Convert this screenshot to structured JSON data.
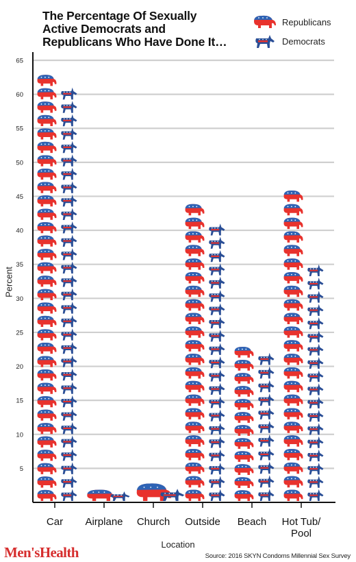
{
  "chart_data": {
    "type": "bar",
    "title": "The Percentage Of Sexually\nActive Democrats and\nRepublicans Who Have Done It…",
    "xlabel": "Location",
    "ylabel": "Percent",
    "categories": [
      "Car",
      "Airplane",
      "Church",
      "Outside",
      "Beach",
      "Hot Tub/\nPool"
    ],
    "series": [
      {
        "name": "Republicans",
        "values": [
          63,
          2,
          3,
          44,
          23,
          46
        ],
        "color": "#e8322d",
        "accent": "#2e63b5",
        "icon": "elephant-icon"
      },
      {
        "name": "Democrats",
        "values": [
          61,
          1,
          2,
          41,
          22,
          35
        ],
        "color": "#2a4e96",
        "accent": "#e8322d",
        "icon": "donkey-icon"
      }
    ],
    "ylim": [
      0,
      65
    ],
    "yticks": [
      5,
      10,
      15,
      20,
      25,
      30,
      35,
      40,
      45,
      50,
      55,
      60,
      65
    ],
    "grid": true,
    "legend": "top-right"
  },
  "footer": {
    "logo_text": "Men'sHealth",
    "source": "Source: 2016 SKYN Condoms Millennial Sex Survey"
  }
}
